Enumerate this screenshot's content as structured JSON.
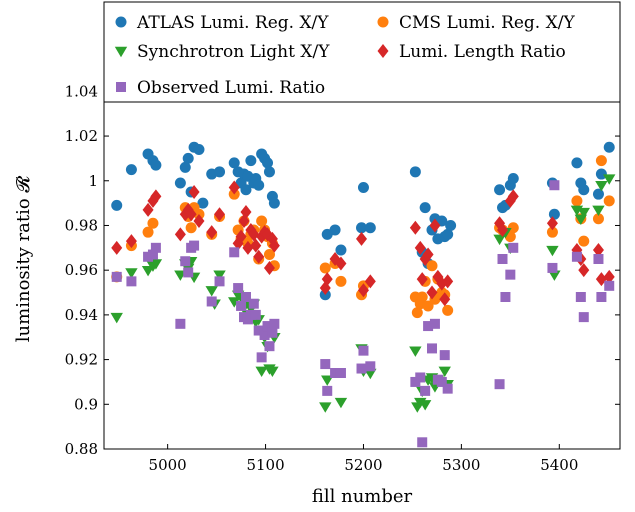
{
  "chart_data": {
    "type": "scatter",
    "xlabel": "fill number",
    "ylabel": "luminosity ratio 𝓡",
    "xlim": [
      4935,
      5462
    ],
    "ylim": [
      0.88,
      1.05
    ],
    "xticks": [
      5000,
      5100,
      5200,
      5300,
      5400
    ],
    "yticks": [
      0.88,
      0.9,
      0.92,
      0.94,
      0.96,
      0.98,
      1,
      1.02,
      1.04
    ],
    "ytick_labels": [
      "0.88",
      "0.9",
      "0.92",
      "0.94",
      "0.96",
      "0.98",
      "1",
      "1.02",
      "1.04"
    ],
    "grid": false,
    "legend_placement": "top, above plot",
    "series": [
      {
        "name": "ATLAS Lumi. Reg. X/Y",
        "marker": "circle",
        "color": "#1f77b4",
        "points": [
          [
            4948,
            0.989
          ],
          [
            4963,
            1.005
          ],
          [
            4980,
            1.012
          ],
          [
            4985,
            1.009
          ],
          [
            4988,
            1.007
          ],
          [
            5013,
            0.999
          ],
          [
            5018,
            1.006
          ],
          [
            5021,
            1.01
          ],
          [
            5024,
            0.995
          ],
          [
            5027,
            1.015
          ],
          [
            5032,
            1.014
          ],
          [
            5036,
            0.99
          ],
          [
            5045,
            1.003
          ],
          [
            5053,
            1.004
          ],
          [
            5068,
            1.008
          ],
          [
            5072,
            1.004
          ],
          [
            5075,
            0.999
          ],
          [
            5078,
            1.003
          ],
          [
            5080,
            0.996
          ],
          [
            5082,
            1.002
          ],
          [
            5085,
            1.009
          ],
          [
            5088,
            0.999
          ],
          [
            5090,
            1.001
          ],
          [
            5093,
            0.998
          ],
          [
            5096,
            1.012
          ],
          [
            5099,
            1.01
          ],
          [
            5102,
            1.008
          ],
          [
            5104,
            1.004
          ],
          [
            5107,
            0.993
          ],
          [
            5109,
            0.99
          ],
          [
            5161,
            0.949
          ],
          [
            5163,
            0.976
          ],
          [
            5171,
            0.978
          ],
          [
            5177,
            0.969
          ],
          [
            5198,
            0.979
          ],
          [
            5200,
            0.997
          ],
          [
            5207,
            0.979
          ],
          [
            5253,
            1.004
          ],
          [
            5260,
            0.968
          ],
          [
            5263,
            0.988
          ],
          [
            5266,
            0.963
          ],
          [
            5270,
            0.978
          ],
          [
            5273,
            0.983
          ],
          [
            5276,
            0.974
          ],
          [
            5280,
            0.982
          ],
          [
            5283,
            0.975
          ],
          [
            5286,
            0.976
          ],
          [
            5289,
            0.98
          ],
          [
            5339,
            0.996
          ],
          [
            5342,
            0.988
          ],
          [
            5345,
            0.989
          ],
          [
            5350,
            0.998
          ],
          [
            5353,
            1.001
          ],
          [
            5393,
            0.999
          ],
          [
            5395,
            0.985
          ],
          [
            5418,
            1.008
          ],
          [
            5422,
            0.999
          ],
          [
            5425,
            0.996
          ],
          [
            5440,
            0.994
          ],
          [
            5443,
            1.003
          ],
          [
            5451,
            1.015
          ]
        ]
      },
      {
        "name": "CMS Lumi. Reg. X/Y",
        "marker": "circle",
        "color": "#ff7f0e",
        "points": [
          [
            4948,
            0.957
          ],
          [
            4963,
            0.971
          ],
          [
            4980,
            0.977
          ],
          [
            4985,
            0.981
          ],
          [
            5018,
            0.988
          ],
          [
            5021,
            0.984
          ],
          [
            5024,
            0.979
          ],
          [
            5027,
            0.988
          ],
          [
            5032,
            0.985
          ],
          [
            5045,
            0.976
          ],
          [
            5053,
            0.984
          ],
          [
            5068,
            0.994
          ],
          [
            5072,
            0.978
          ],
          [
            5075,
            0.974
          ],
          [
            5078,
            0.982
          ],
          [
            5082,
            0.972
          ],
          [
            5085,
            0.976
          ],
          [
            5088,
            0.978
          ],
          [
            5093,
            0.965
          ],
          [
            5096,
            0.982
          ],
          [
            5099,
            0.978
          ],
          [
            5102,
            0.975
          ],
          [
            5104,
            0.967
          ],
          [
            5107,
            0.972
          ],
          [
            5109,
            0.962
          ],
          [
            5161,
            0.961
          ],
          [
            5171,
            0.963
          ],
          [
            5177,
            0.955
          ],
          [
            5198,
            0.949
          ],
          [
            5200,
            0.953
          ],
          [
            5253,
            0.948
          ],
          [
            5255,
            0.941
          ],
          [
            5258,
            0.945
          ],
          [
            5260,
            0.948
          ],
          [
            5263,
            0.955
          ],
          [
            5266,
            0.944
          ],
          [
            5270,
            0.962
          ],
          [
            5273,
            0.947
          ],
          [
            5276,
            0.956
          ],
          [
            5280,
            0.95
          ],
          [
            5283,
            0.949
          ],
          [
            5286,
            0.942
          ],
          [
            5339,
            0.979
          ],
          [
            5342,
            0.978
          ],
          [
            5350,
            0.975
          ],
          [
            5353,
            0.979
          ],
          [
            5393,
            0.977
          ],
          [
            5418,
            0.991
          ],
          [
            5422,
            0.983
          ],
          [
            5425,
            0.973
          ],
          [
            5440,
            0.983
          ],
          [
            5443,
            1.009
          ],
          [
            5451,
            0.991
          ]
        ]
      },
      {
        "name": "Synchrotron Light X/Y",
        "marker": "triangle-down",
        "color": "#2ca02c",
        "points": [
          [
            4948,
            0.939
          ],
          [
            4963,
            0.959
          ],
          [
            4980,
            0.96
          ],
          [
            4985,
            0.962
          ],
          [
            4988,
            0.963
          ],
          [
            5013,
            0.958
          ],
          [
            5018,
            0.963
          ],
          [
            5021,
            0.961
          ],
          [
            5024,
            0.964
          ],
          [
            5027,
            0.957
          ],
          [
            5045,
            0.951
          ],
          [
            5048,
            0.945
          ],
          [
            5053,
            0.958
          ],
          [
            5068,
            0.946
          ],
          [
            5072,
            0.949
          ],
          [
            5075,
            0.948
          ],
          [
            5080,
            0.945
          ],
          [
            5082,
            0.94
          ],
          [
            5085,
            0.943
          ],
          [
            5088,
            0.945
          ],
          [
            5090,
            0.937
          ],
          [
            5093,
            0.938
          ],
          [
            5096,
            0.915
          ],
          [
            5099,
            0.93
          ],
          [
            5102,
            0.926
          ],
          [
            5104,
            0.916
          ],
          [
            5107,
            0.915
          ],
          [
            5109,
            0.93
          ],
          [
            5161,
            0.899
          ],
          [
            5163,
            0.911
          ],
          [
            5177,
            0.901
          ],
          [
            5198,
            0.925
          ],
          [
            5200,
            0.915
          ],
          [
            5207,
            0.914
          ],
          [
            5253,
            0.924
          ],
          [
            5255,
            0.899
          ],
          [
            5258,
            0.901
          ],
          [
            5260,
            0.906
          ],
          [
            5263,
            0.9
          ],
          [
            5266,
            0.911
          ],
          [
            5270,
            0.912
          ],
          [
            5273,
            0.908
          ],
          [
            5276,
            0.911
          ],
          [
            5283,
            0.915
          ],
          [
            5286,
            0.909
          ],
          [
            5339,
            0.974
          ],
          [
            5345,
            0.977
          ],
          [
            5350,
            0.97
          ],
          [
            5393,
            0.969
          ],
          [
            5395,
            0.958
          ],
          [
            5418,
            0.987
          ],
          [
            5422,
            0.983
          ],
          [
            5425,
            0.986
          ],
          [
            5440,
            0.987
          ],
          [
            5443,
            0.998
          ],
          [
            5451,
            1.001
          ]
        ]
      },
      {
        "name": "Lumi. Length Ratio",
        "marker": "diamond",
        "color": "#d62728",
        "points": [
          [
            4948,
            0.97
          ],
          [
            4963,
            0.973
          ],
          [
            4980,
            0.987
          ],
          [
            4985,
            0.991
          ],
          [
            4988,
            0.993
          ],
          [
            5013,
            0.976
          ],
          [
            5018,
            0.985
          ],
          [
            5021,
            0.987
          ],
          [
            5024,
            0.985
          ],
          [
            5027,
            0.995
          ],
          [
            5032,
            0.982
          ],
          [
            5045,
            0.977
          ],
          [
            5053,
            0.985
          ],
          [
            5068,
            0.997
          ],
          [
            5072,
            0.972
          ],
          [
            5075,
            0.975
          ],
          [
            5078,
            0.982
          ],
          [
            5080,
            0.986
          ],
          [
            5082,
            0.97
          ],
          [
            5085,
            0.978
          ],
          [
            5088,
            0.976
          ],
          [
            5090,
            0.971
          ],
          [
            5093,
            0.966
          ],
          [
            5096,
            0.975
          ],
          [
            5099,
            0.977
          ],
          [
            5102,
            0.976
          ],
          [
            5104,
            0.961
          ],
          [
            5107,
            0.974
          ],
          [
            5109,
            0.971
          ],
          [
            5161,
            0.952
          ],
          [
            5163,
            0.956
          ],
          [
            5171,
            0.965
          ],
          [
            5177,
            0.963
          ],
          [
            5198,
            0.974
          ],
          [
            5200,
            0.951
          ],
          [
            5207,
            0.955
          ],
          [
            5253,
            0.979
          ],
          [
            5258,
            0.97
          ],
          [
            5260,
            0.956
          ],
          [
            5263,
            0.965
          ],
          [
            5266,
            0.967
          ],
          [
            5270,
            0.95
          ],
          [
            5273,
            0.98
          ],
          [
            5276,
            0.957
          ],
          [
            5280,
            0.954
          ],
          [
            5283,
            0.947
          ],
          [
            5286,
            0.955
          ],
          [
            5339,
            0.981
          ],
          [
            5342,
            0.978
          ],
          [
            5350,
            0.991
          ],
          [
            5353,
            0.993
          ],
          [
            5393,
            0.981
          ],
          [
            5418,
            0.969
          ],
          [
            5422,
            0.965
          ],
          [
            5425,
            0.96
          ],
          [
            5440,
            0.969
          ],
          [
            5443,
            0.956
          ],
          [
            5451,
            0.957
          ]
        ]
      },
      {
        "name": "Observed Lumi. Ratio",
        "marker": "square",
        "color": "#9467bd",
        "points": [
          [
            4948,
            0.957
          ],
          [
            4963,
            0.955
          ],
          [
            4980,
            0.966
          ],
          [
            4985,
            0.967
          ],
          [
            4988,
            0.97
          ],
          [
            5013,
            0.936
          ],
          [
            5018,
            0.964
          ],
          [
            5021,
            0.959
          ],
          [
            5024,
            0.97
          ],
          [
            5027,
            0.971
          ],
          [
            5045,
            0.946
          ],
          [
            5053,
            0.955
          ],
          [
            5068,
            0.968
          ],
          [
            5072,
            0.952
          ],
          [
            5075,
            0.944
          ],
          [
            5078,
            0.939
          ],
          [
            5080,
            0.948
          ],
          [
            5082,
            0.938
          ],
          [
            5085,
            0.94
          ],
          [
            5088,
            0.945
          ],
          [
            5090,
            0.94
          ],
          [
            5093,
            0.933
          ],
          [
            5096,
            0.921
          ],
          [
            5099,
            0.931
          ],
          [
            5102,
            0.935
          ],
          [
            5104,
            0.926
          ],
          [
            5107,
            0.932
          ],
          [
            5109,
            0.936
          ],
          [
            5161,
            0.918
          ],
          [
            5163,
            0.906
          ],
          [
            5171,
            0.914
          ],
          [
            5177,
            0.914
          ],
          [
            5198,
            0.916
          ],
          [
            5200,
            0.924
          ],
          [
            5207,
            0.917
          ],
          [
            5253,
            0.91
          ],
          [
            5258,
            0.912
          ],
          [
            5260,
            0.883
          ],
          [
            5263,
            0.906
          ],
          [
            5266,
            0.935
          ],
          [
            5270,
            0.925
          ],
          [
            5273,
            0.936
          ],
          [
            5276,
            0.911
          ],
          [
            5280,
            0.91
          ],
          [
            5283,
            0.922
          ],
          [
            5286,
            0.907
          ],
          [
            5339,
            0.909
          ],
          [
            5342,
            0.965
          ],
          [
            5345,
            0.948
          ],
          [
            5350,
            0.958
          ],
          [
            5353,
            0.97
          ],
          [
            5393,
            0.961
          ],
          [
            5395,
            0.998
          ],
          [
            5418,
            0.966
          ],
          [
            5422,
            0.948
          ],
          [
            5425,
            0.939
          ],
          [
            5440,
            0.965
          ],
          [
            5443,
            0.948
          ],
          [
            5451,
            0.953
          ]
        ]
      }
    ]
  }
}
